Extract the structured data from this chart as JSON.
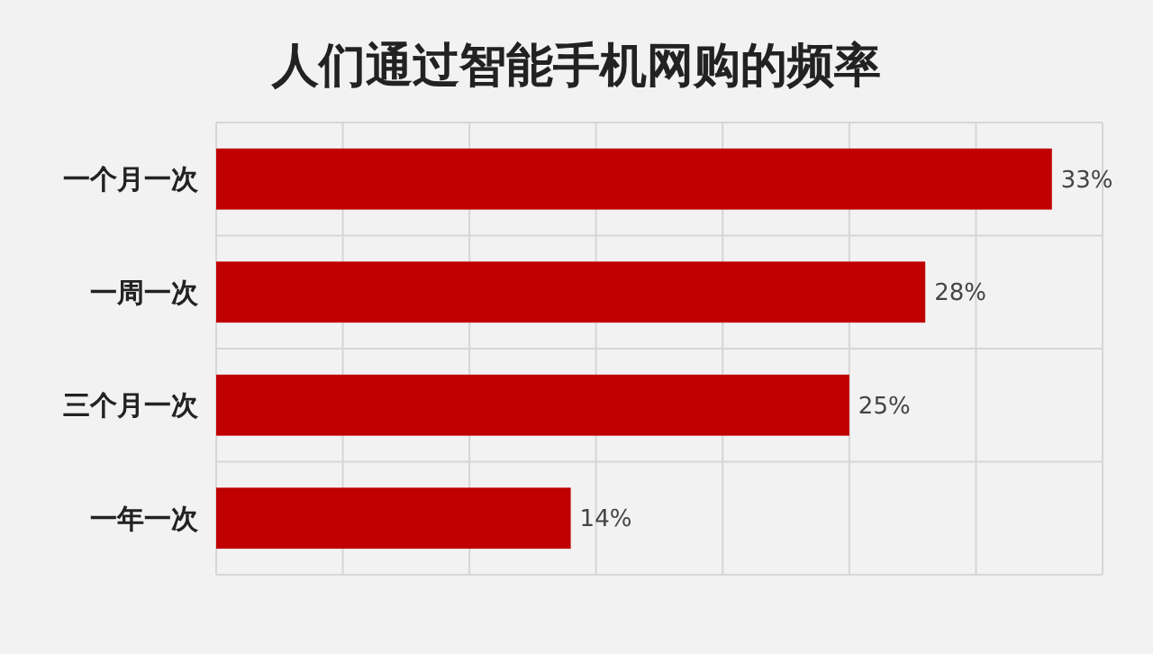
{
  "chart_data": {
    "type": "bar",
    "orientation": "horizontal",
    "title": "人们通过智能手机网购的频率",
    "categories": [
      "一个月一次",
      "一周一次",
      "三个月一次",
      "一年一次"
    ],
    "values": [
      33,
      28,
      25,
      14
    ],
    "color": "#c00000",
    "value_labels": [
      "33%",
      "28%",
      "25%",
      "14%"
    ],
    "xlim": [
      0,
      35
    ],
    "xticks": [
      {
        "value": 0,
        "label": null
      },
      {
        "value": 5,
        "label": null
      },
      {
        "value": 10,
        "label": null
      },
      {
        "value": 15,
        "label": null
      },
      {
        "value": 20,
        "label": null
      },
      {
        "value": 25,
        "label": null
      },
      {
        "value": 30,
        "label": null
      },
      {
        "value": 35,
        "label": null
      }
    ],
    "grid": true,
    "tick_labels": "y"
  }
}
